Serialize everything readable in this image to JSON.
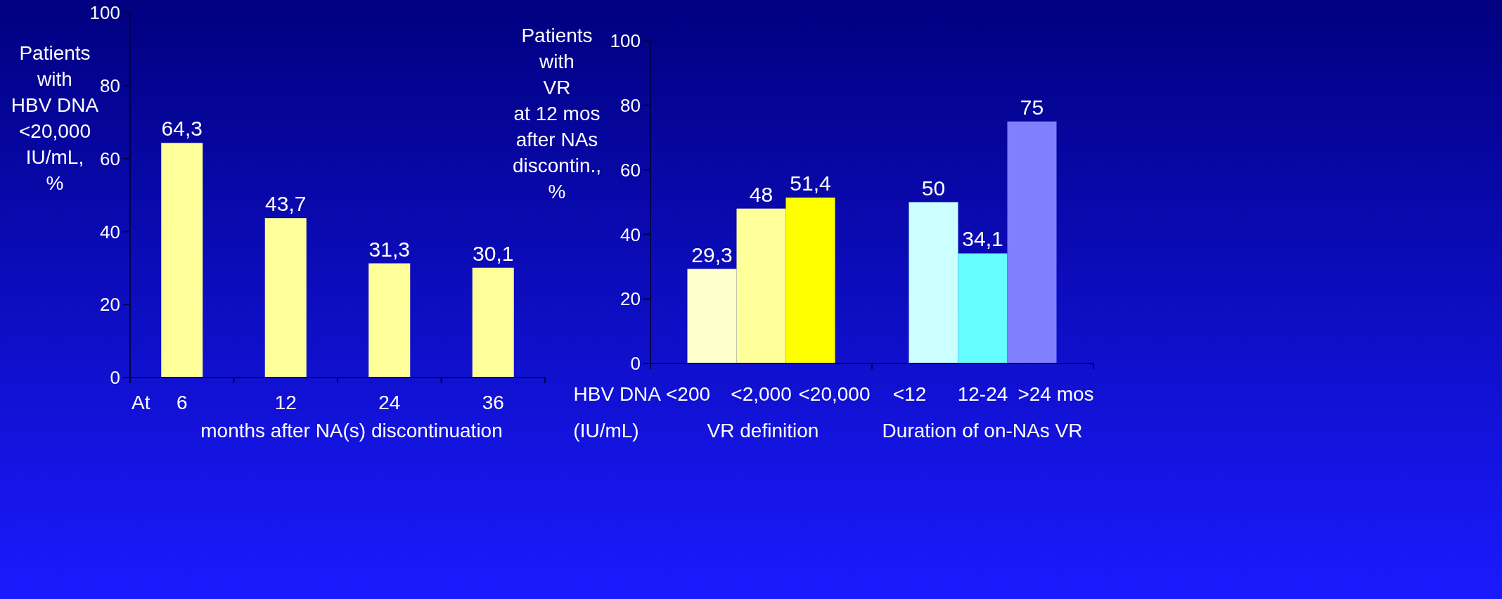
{
  "chart_data": [
    {
      "type": "bar",
      "ylabel": "Patients\nwith\nHBV DNA\n<20,000\nIU/mL,\n%",
      "xlabel": "months after NA(s) discontinuation",
      "categories": [
        "6",
        "12",
        "24",
        "36"
      ],
      "values": [
        64.3,
        43.7,
        31.3,
        30.1
      ],
      "value_labels": [
        "64,3",
        "43,7",
        "31,3",
        "30,1"
      ],
      "color": "#ffff99",
      "ylim": [
        0,
        100
      ],
      "yticks": [
        0,
        20,
        40,
        60,
        80,
        100
      ],
      "annotations": [
        "At"
      ]
    },
    {
      "type": "bar",
      "ylabel": "Patients\nwith\nVR\nat 12 mos\nafter NAs\ndiscontin.,\n%",
      "categories": [
        "<200",
        "<2,000",
        "<20,000",
        null,
        "<12",
        "12-24",
        ">24 mos"
      ],
      "values": [
        29.3,
        48,
        51.4,
        null,
        50,
        34.1,
        75
      ],
      "value_labels": [
        "29,3",
        "48",
        "51,4",
        null,
        "50",
        "34,1",
        "75"
      ],
      "colors": [
        "#ffffcc",
        "#ffff99",
        "#ffff00",
        null,
        "#ccffff",
        "#66ffff",
        "#8080ff"
      ],
      "ylim": [
        0,
        100
      ],
      "yticks": [
        0,
        20,
        40,
        60,
        80,
        100
      ],
      "annotations": [
        "HBV DNA",
        "(IU/mL)",
        "VR definition",
        "Duration of on-NAs VR"
      ]
    }
  ]
}
